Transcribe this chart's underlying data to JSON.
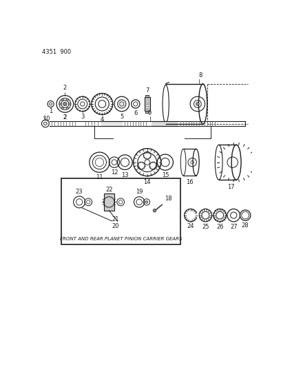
{
  "title": "4351  900",
  "bg_color": "#ffffff",
  "line_color": "#1a1a1a",
  "text_color": "#1a1a1a",
  "box_label": "FRONT AND REAR PLANET PINION CARRIER GEARS",
  "font_size_title": 6,
  "font_size_labels": 6
}
